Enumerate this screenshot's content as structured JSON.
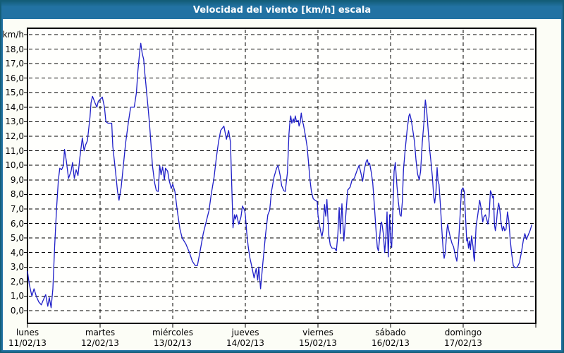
{
  "title": "Velocidad del viento [km/h] escala",
  "colors": {
    "title_bar": "#2272a3",
    "frame": "#2272a3",
    "outer_edge": "#135d78",
    "page_background": "#fcfdf6",
    "plot_background": "#fffffd",
    "grid": "#000000",
    "line": "#1f1fc8"
  },
  "chart_data": {
    "type": "line",
    "title": "Velocidad del viento [km/h] escala",
    "ylabel": "km/h",
    "xlabel": "",
    "ylim": [
      0,
      19
    ],
    "y_tick_step": 1,
    "grid": "dashed horizontal every 1 km/h, dashed vertical at each day boundary",
    "legend_position": "none",
    "y_tick_labels": [
      "18,0",
      "17,0",
      "16,0",
      "15,0",
      "14,0",
      "13,0",
      "12,0",
      "11,0",
      "10,0",
      "9,0",
      "8,0",
      "7,0",
      "6,0",
      "5,0",
      "4,0",
      "3,0",
      "2,0",
      "1,0",
      "0,0"
    ],
    "categories": [
      {
        "name": "lunes",
        "date": "11/02/13"
      },
      {
        "name": "martes",
        "date": "12/02/13"
      },
      {
        "name": "miércoles",
        "date": "13/02/13"
      },
      {
        "name": "jueves",
        "date": "14/02/13"
      },
      {
        "name": "viernes",
        "date": "15/02/13"
      },
      {
        "name": "sábado",
        "date": "16/02/13"
      },
      {
        "name": "domingo",
        "date": "17/02/13"
      }
    ],
    "x_unit": "days_from_monday_00h (0 = lunes 11/02/13 00:00, 7 = end of domingo)",
    "series": [
      {
        "name": "Velocidad del viento",
        "color": "#1f1fc8",
        "points": [
          [
            0.0,
            2.7
          ],
          [
            0.025,
            1.8
          ],
          [
            0.06,
            1.0
          ],
          [
            0.09,
            1.5
          ],
          [
            0.12,
            1.0
          ],
          [
            0.155,
            0.6
          ],
          [
            0.19,
            0.4
          ],
          [
            0.215,
            0.7
          ],
          [
            0.25,
            1.1
          ],
          [
            0.28,
            0.3
          ],
          [
            0.3,
            0.9
          ],
          [
            0.325,
            0.2
          ],
          [
            0.35,
            1.5
          ],
          [
            0.375,
            4.5
          ],
          [
            0.4,
            7.0
          ],
          [
            0.425,
            9.0
          ],
          [
            0.445,
            9.8
          ],
          [
            0.47,
            9.7
          ],
          [
            0.495,
            10.0
          ],
          [
            0.51,
            11.1
          ],
          [
            0.535,
            10.3
          ],
          [
            0.565,
            9.1
          ],
          [
            0.6,
            9.6
          ],
          [
            0.62,
            10.2
          ],
          [
            0.645,
            9.1
          ],
          [
            0.67,
            9.7
          ],
          [
            0.695,
            9.3
          ],
          [
            0.72,
            10.5
          ],
          [
            0.755,
            11.9
          ],
          [
            0.78,
            11.0
          ],
          [
            0.8,
            11.4
          ],
          [
            0.825,
            11.7
          ],
          [
            0.86,
            13.3
          ],
          [
            0.875,
            14.3
          ],
          [
            0.895,
            14.75
          ],
          [
            0.93,
            14.3
          ],
          [
            0.955,
            14.0
          ],
          [
            0.975,
            14.4
          ],
          [
            1.03,
            14.7
          ],
          [
            1.06,
            14.0
          ],
          [
            1.08,
            13.0
          ],
          [
            1.11,
            12.9
          ],
          [
            1.16,
            12.9
          ],
          [
            1.175,
            11.3
          ],
          [
            1.21,
            9.7
          ],
          [
            1.24,
            8.2
          ],
          [
            1.26,
            7.6
          ],
          [
            1.29,
            8.5
          ],
          [
            1.32,
            10.0
          ],
          [
            1.35,
            11.5
          ],
          [
            1.39,
            13.0
          ],
          [
            1.42,
            14.0
          ],
          [
            1.47,
            14.0
          ],
          [
            1.5,
            15.0
          ],
          [
            1.52,
            16.5
          ],
          [
            1.545,
            17.8
          ],
          [
            1.56,
            18.4
          ],
          [
            1.58,
            17.7
          ],
          [
            1.6,
            17.3
          ],
          [
            1.615,
            16.4
          ],
          [
            1.63,
            15.6
          ],
          [
            1.645,
            14.8
          ],
          [
            1.66,
            14.0
          ],
          [
            1.68,
            12.9
          ],
          [
            1.7,
            11.5
          ],
          [
            1.72,
            10.0
          ],
          [
            1.75,
            8.8
          ],
          [
            1.775,
            8.25
          ],
          [
            1.8,
            8.2
          ],
          [
            1.82,
            10.0
          ],
          [
            1.84,
            9.35
          ],
          [
            1.86,
            9.9
          ],
          [
            1.885,
            9.0
          ],
          [
            1.9,
            9.8
          ],
          [
            1.93,
            9.6
          ],
          [
            1.95,
            9.0
          ],
          [
            1.98,
            8.4
          ],
          [
            2.0,
            8.7
          ],
          [
            2.03,
            8.2
          ],
          [
            2.065,
            6.8
          ],
          [
            2.1,
            5.6
          ],
          [
            2.13,
            5.0
          ],
          [
            2.18,
            4.6
          ],
          [
            2.23,
            4.0
          ],
          [
            2.27,
            3.4
          ],
          [
            2.31,
            3.1
          ],
          [
            2.34,
            3.1
          ],
          [
            2.37,
            3.9
          ],
          [
            2.42,
            5.3
          ],
          [
            2.47,
            6.3
          ],
          [
            2.5,
            6.9
          ],
          [
            2.53,
            8.0
          ],
          [
            2.57,
            9.2
          ],
          [
            2.6,
            10.5
          ],
          [
            2.63,
            11.6
          ],
          [
            2.66,
            12.4
          ],
          [
            2.705,
            12.7
          ],
          [
            2.74,
            11.8
          ],
          [
            2.77,
            12.4
          ],
          [
            2.795,
            11.6
          ],
          [
            2.83,
            5.7
          ],
          [
            2.85,
            6.6
          ],
          [
            2.862,
            6.3
          ],
          [
            2.88,
            6.6
          ],
          [
            2.91,
            5.95
          ],
          [
            2.94,
            6.45
          ],
          [
            2.96,
            7.2
          ],
          [
            2.99,
            6.9
          ],
          [
            3.0,
            6.6
          ],
          [
            3.02,
            5.3
          ],
          [
            3.04,
            4.4
          ],
          [
            3.06,
            3.7
          ],
          [
            3.09,
            3.0
          ],
          [
            3.12,
            2.25
          ],
          [
            3.15,
            2.9
          ],
          [
            3.17,
            2.1
          ],
          [
            3.185,
            3.0
          ],
          [
            3.21,
            1.5
          ],
          [
            3.24,
            3.2
          ],
          [
            3.28,
            5.3
          ],
          [
            3.31,
            6.6
          ],
          [
            3.335,
            6.9
          ],
          [
            3.36,
            8.2
          ],
          [
            3.395,
            9.2
          ],
          [
            3.43,
            9.8
          ],
          [
            3.45,
            10.0
          ],
          [
            3.48,
            9.3
          ],
          [
            3.5,
            8.6
          ],
          [
            3.53,
            8.25
          ],
          [
            3.55,
            8.2
          ],
          [
            3.58,
            9.5
          ],
          [
            3.6,
            12.1
          ],
          [
            3.615,
            13.05
          ],
          [
            3.625,
            13.4
          ],
          [
            3.64,
            12.9
          ],
          [
            3.66,
            13.2
          ],
          [
            3.672,
            12.95
          ],
          [
            3.688,
            13.4
          ],
          [
            3.705,
            13.0
          ],
          [
            3.728,
            13.1
          ],
          [
            3.74,
            12.7
          ],
          [
            3.755,
            12.95
          ],
          [
            3.77,
            13.6
          ],
          [
            3.785,
            13.05
          ],
          [
            3.8,
            12.8
          ],
          [
            3.825,
            12.1
          ],
          [
            3.85,
            11.3
          ],
          [
            3.87,
            10.2
          ],
          [
            3.89,
            9.0
          ],
          [
            3.91,
            8.2
          ],
          [
            3.935,
            7.7
          ],
          [
            3.96,
            7.6
          ],
          [
            3.99,
            7.5
          ],
          [
            4.0,
            6.6
          ],
          [
            4.02,
            5.9
          ],
          [
            4.04,
            5.4
          ],
          [
            4.055,
            5.1
          ],
          [
            4.07,
            5.5
          ],
          [
            4.09,
            7.3
          ],
          [
            4.108,
            6.5
          ],
          [
            4.123,
            7.65
          ],
          [
            4.15,
            5.15
          ],
          [
            4.17,
            4.5
          ],
          [
            4.195,
            4.3
          ],
          [
            4.23,
            4.3
          ],
          [
            4.253,
            4.1
          ],
          [
            4.275,
            5.3
          ],
          [
            4.292,
            7.1
          ],
          [
            4.308,
            5.3
          ],
          [
            4.33,
            7.35
          ],
          [
            4.356,
            4.8
          ],
          [
            4.382,
            6.45
          ],
          [
            4.41,
            8.3
          ],
          [
            4.443,
            8.5
          ],
          [
            4.47,
            9.0
          ],
          [
            4.5,
            9.1
          ],
          [
            4.535,
            9.6
          ],
          [
            4.566,
            10.0
          ],
          [
            4.59,
            9.5
          ],
          [
            4.615,
            8.9
          ],
          [
            4.638,
            9.7
          ],
          [
            4.663,
            10.25
          ],
          [
            4.68,
            10.4
          ],
          [
            4.696,
            10.05
          ],
          [
            4.712,
            10.15
          ],
          [
            4.735,
            9.5
          ],
          [
            4.754,
            8.8
          ],
          [
            4.777,
            7.25
          ],
          [
            4.8,
            5.5
          ],
          [
            4.817,
            4.35
          ],
          [
            4.832,
            4.1
          ],
          [
            4.85,
            5.0
          ],
          [
            4.864,
            5.95
          ],
          [
            4.877,
            6.1
          ],
          [
            4.886,
            5.8
          ],
          [
            4.9,
            5.3
          ],
          [
            4.919,
            4.0
          ],
          [
            4.935,
            5.0
          ],
          [
            4.951,
            6.8
          ],
          [
            4.968,
            3.7
          ],
          [
            4.987,
            6.6
          ],
          [
            5.0,
            4.8
          ],
          [
            5.016,
            4.35
          ],
          [
            5.032,
            7.0
          ],
          [
            5.049,
            9.6
          ],
          [
            5.065,
            10.2
          ],
          [
            5.087,
            8.6
          ],
          [
            5.107,
            7.5
          ],
          [
            5.129,
            6.6
          ],
          [
            5.146,
            6.5
          ],
          [
            5.162,
            7.5
          ],
          [
            5.178,
            9.7
          ],
          [
            5.2,
            11.0
          ],
          [
            5.227,
            12.4
          ],
          [
            5.252,
            13.4
          ],
          [
            5.265,
            13.55
          ],
          [
            5.285,
            13.1
          ],
          [
            5.307,
            12.4
          ],
          [
            5.33,
            11.6
          ],
          [
            5.35,
            10.4
          ],
          [
            5.372,
            9.4
          ],
          [
            5.395,
            9.0
          ],
          [
            5.414,
            9.6
          ],
          [
            5.437,
            11.6
          ],
          [
            5.46,
            13.0
          ],
          [
            5.479,
            14.5
          ],
          [
            5.495,
            13.9
          ],
          [
            5.511,
            12.9
          ],
          [
            5.534,
            11.3
          ],
          [
            5.557,
            10.2
          ],
          [
            5.576,
            9.2
          ],
          [
            5.595,
            7.8
          ],
          [
            5.608,
            7.4
          ],
          [
            5.625,
            8.2
          ],
          [
            5.641,
            9.85
          ],
          [
            5.654,
            8.9
          ],
          [
            5.667,
            8.7
          ],
          [
            5.686,
            7.25
          ],
          [
            5.706,
            5.6
          ],
          [
            5.725,
            4.1
          ],
          [
            5.738,
            3.6
          ],
          [
            5.754,
            4.05
          ],
          [
            5.777,
            5.6
          ],
          [
            5.786,
            5.95
          ],
          [
            5.803,
            5.5
          ],
          [
            5.825,
            5.0
          ],
          [
            5.848,
            4.6
          ],
          [
            5.867,
            4.4
          ],
          [
            5.89,
            3.85
          ],
          [
            5.913,
            3.4
          ],
          [
            5.938,
            4.8
          ],
          [
            5.961,
            6.9
          ],
          [
            5.977,
            8.3
          ],
          [
            5.997,
            8.45
          ],
          [
            6.016,
            8.2
          ],
          [
            6.032,
            6.5
          ],
          [
            6.049,
            4.8
          ],
          [
            6.058,
            5.0
          ],
          [
            6.074,
            4.3
          ],
          [
            6.087,
            4.8
          ],
          [
            6.1,
            4.2
          ],
          [
            6.116,
            5.15
          ],
          [
            6.136,
            4.4
          ],
          [
            6.146,
            3.7
          ],
          [
            6.155,
            3.4
          ],
          [
            6.178,
            5.8
          ],
          [
            6.201,
            6.6
          ],
          [
            6.227,
            7.6
          ],
          [
            6.249,
            7.0
          ],
          [
            6.269,
            6.1
          ],
          [
            6.285,
            6.45
          ],
          [
            6.307,
            6.6
          ],
          [
            6.324,
            6.3
          ],
          [
            6.34,
            5.95
          ],
          [
            6.356,
            6.45
          ],
          [
            6.375,
            8.25
          ],
          [
            6.392,
            8.05
          ],
          [
            6.408,
            7.75
          ],
          [
            6.417,
            7.9
          ],
          [
            6.43,
            5.95
          ],
          [
            6.443,
            5.5
          ],
          [
            6.456,
            5.95
          ],
          [
            6.472,
            6.9
          ],
          [
            6.489,
            7.4
          ],
          [
            6.505,
            6.9
          ],
          [
            6.524,
            5.95
          ],
          [
            6.54,
            5.5
          ],
          [
            6.556,
            5.8
          ],
          [
            6.572,
            5.5
          ],
          [
            6.59,
            5.6
          ],
          [
            6.61,
            6.8
          ],
          [
            6.628,
            6.2
          ],
          [
            6.648,
            4.9
          ],
          [
            6.668,
            3.9
          ],
          [
            6.69,
            3.1
          ],
          [
            6.715,
            2.95
          ],
          [
            6.745,
            3.0
          ],
          [
            6.775,
            3.3
          ],
          [
            6.805,
            4.1
          ],
          [
            6.83,
            4.9
          ],
          [
            6.85,
            5.3
          ],
          [
            6.872,
            4.9
          ],
          [
            6.895,
            5.2
          ],
          [
            6.92,
            5.5
          ],
          [
            6.945,
            5.9
          ]
        ]
      }
    ]
  }
}
